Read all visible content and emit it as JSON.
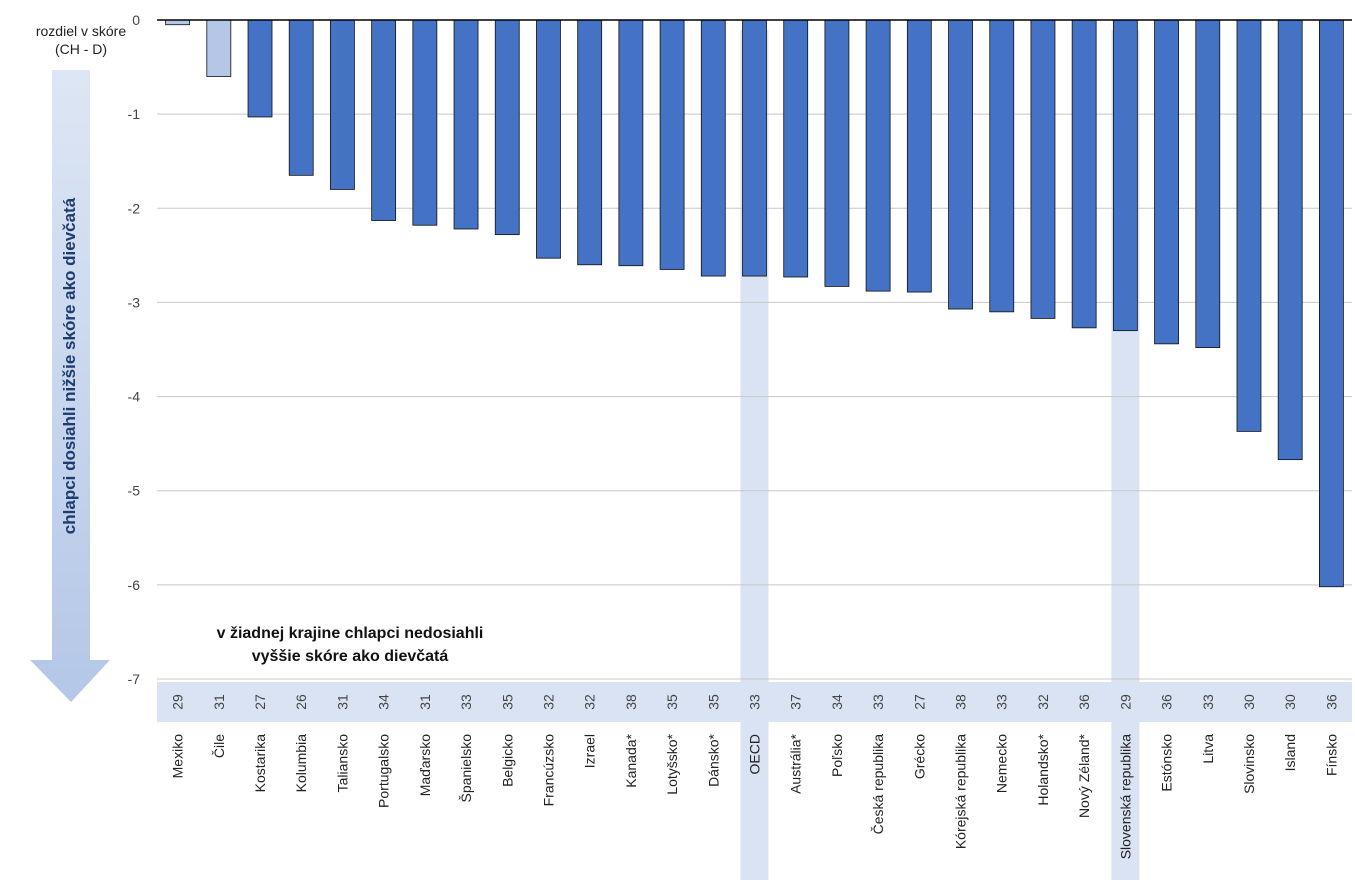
{
  "chart_data": {
    "type": "bar",
    "ylabel": [
      "rozdiel v skóre",
      "(CH - D)"
    ],
    "arrow_label": "chlapci dosiahli nižšie skóre ako dievčatá",
    "annotation": [
      "v žiadnej krajine chlapci nedosiahli",
      "vyššie skóre ako dievčatá"
    ],
    "ylim": [
      -7,
      0
    ],
    "yticks": [
      0,
      -1,
      -2,
      -3,
      -4,
      -5,
      -6,
      -7
    ],
    "grid": true,
    "highlighted_categories": [
      "OECD",
      "Slovenská republika"
    ],
    "colors": {
      "bar": "#4472c4",
      "bar_light": "#b4c7e7",
      "highlight_band": "#dae3f3",
      "arrow": "#b4c7e7"
    },
    "categories": [
      "Mexiko",
      "Čile",
      "Kostarika",
      "Kolumbia",
      "Taliansko",
      "Portugalsko",
      "Maďarsko",
      "Španielsko",
      "Belgicko",
      "Francúzsko",
      "Izrael",
      "Kanada*",
      "Lotyšsko*",
      "Dánsko*",
      "OECD",
      "Austrália*",
      "Poľsko",
      "Česká republika",
      "Grécko",
      "Kórejská republika",
      "Nemecko",
      "Holandsko*",
      "Nový Zéland*",
      "Slovenská republika",
      "Estónsko",
      "Litva",
      "Slovinsko",
      "Island",
      "Fínsko"
    ],
    "values": [
      -0.05,
      -0.6,
      -1.03,
      -1.65,
      -1.8,
      -2.13,
      -2.18,
      -2.22,
      -2.28,
      -2.53,
      -2.6,
      -2.61,
      -2.65,
      -2.72,
      -2.72,
      -2.73,
      -2.83,
      -2.88,
      -2.89,
      -3.07,
      -3.1,
      -3.17,
      -3.27,
      -3.3,
      -3.44,
      -3.48,
      -4.37,
      -4.67,
      -6.02
    ],
    "light_bars": [
      "Mexiko",
      "Čile"
    ],
    "counts": [
      "29",
      "31",
      "27",
      "26",
      "31",
      "34",
      "31",
      "33",
      "35",
      "32",
      "32",
      "38",
      "35",
      "35",
      "33",
      "37",
      "34",
      "33",
      "27",
      "38",
      "33",
      "32",
      "36",
      "29",
      "36",
      "33",
      "30",
      "30",
      "36"
    ]
  }
}
